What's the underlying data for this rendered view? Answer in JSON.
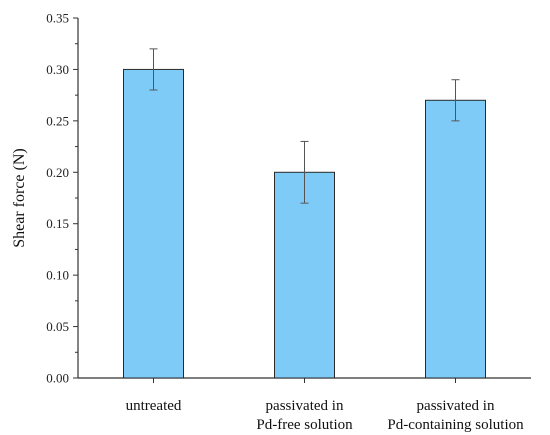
{
  "chart_data": {
    "type": "bar",
    "title": "",
    "xlabel": "",
    "ylabel": "Shear force (N)",
    "categories": [
      [
        "untreated"
      ],
      [
        "passivated in",
        "Pd-free solution"
      ],
      [
        "passivated in",
        "Pd-containing solution"
      ]
    ],
    "values": [
      0.3,
      0.2,
      0.27
    ],
    "error_bars": [
      {
        "low": 0.28,
        "high": 0.32
      },
      {
        "low": 0.17,
        "high": 0.23
      },
      {
        "low": 0.25,
        "high": 0.29
      }
    ],
    "ylim": [
      0.0,
      0.35
    ],
    "yticks": [
      0.0,
      0.05,
      0.1,
      0.15,
      0.2,
      0.25,
      0.3,
      0.35
    ],
    "ytick_labels": [
      "0.00",
      "0.05",
      "0.10",
      "0.15",
      "0.20",
      "0.25",
      "0.30",
      "0.35"
    ],
    "grid": false,
    "legend": "none",
    "colors": {
      "bar_fill": "#7fcbf8",
      "bar_stroke": "#2a2a2a",
      "axis": "#333333",
      "error_bar": "#555555"
    }
  }
}
